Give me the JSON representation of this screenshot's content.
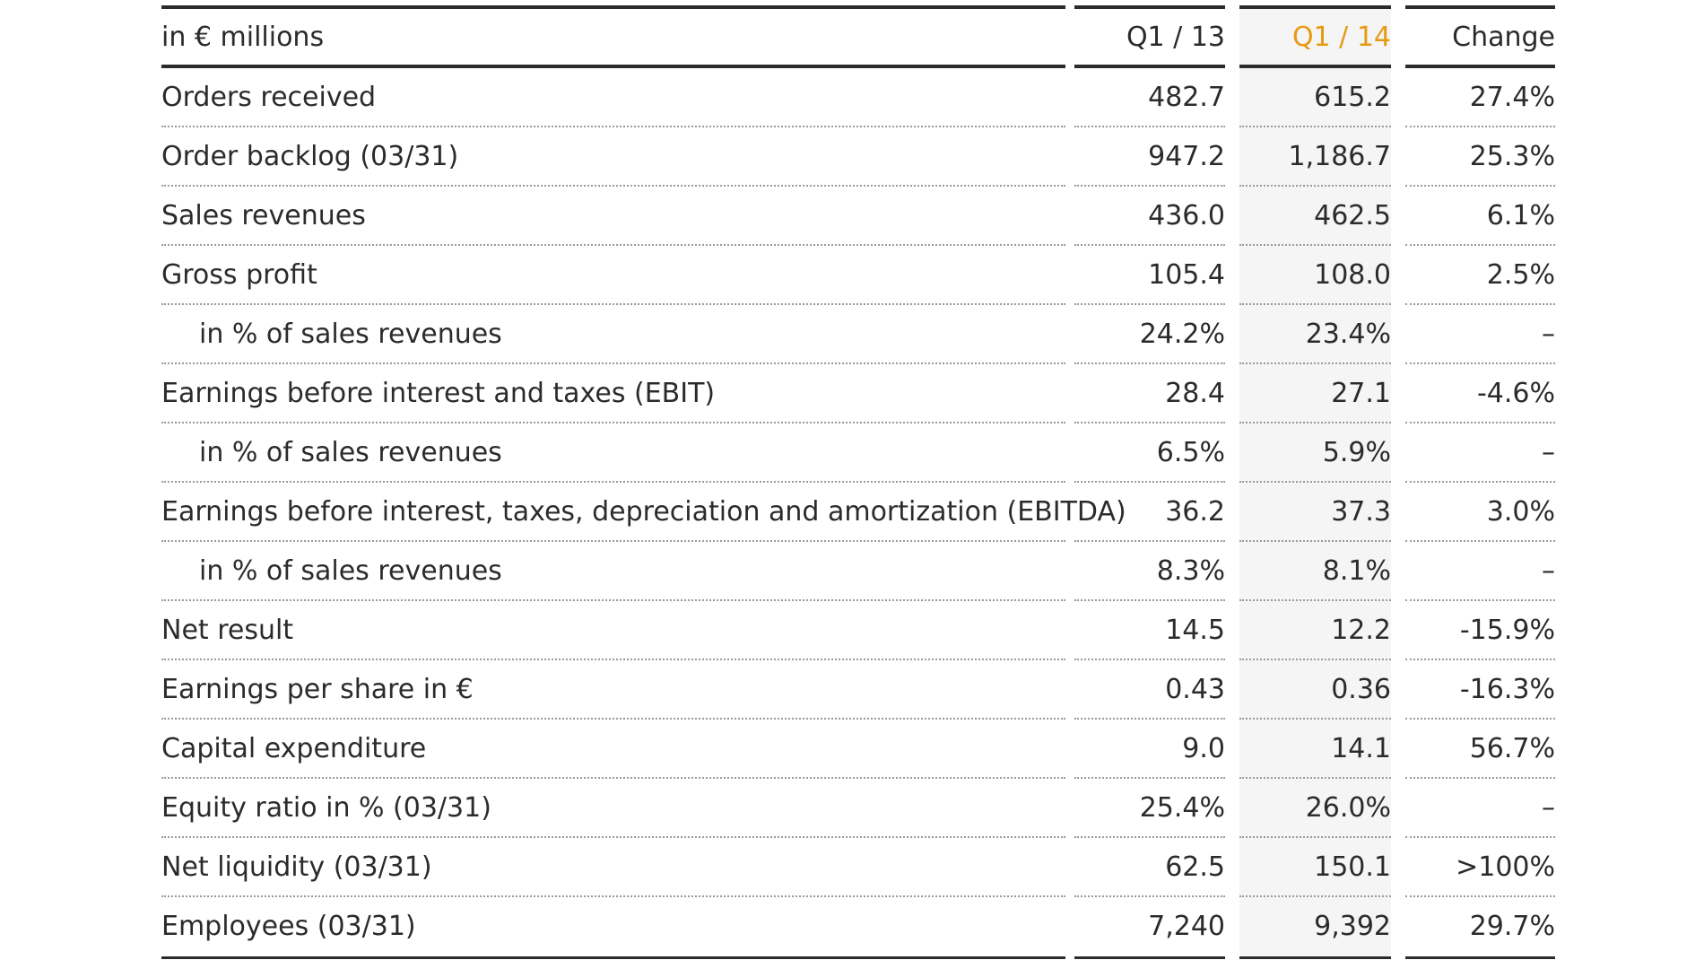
{
  "table": {
    "header": {
      "label": "in € millions",
      "col1": "Q1 / 13",
      "col2": "Q1 / 14",
      "col3": "Change"
    },
    "rows": [
      {
        "label": "Orders received",
        "q1_13": "482.7",
        "q1_14": "615.2",
        "change": "27.4%",
        "indent": false
      },
      {
        "label": "Order backlog (03/31)",
        "q1_13": "947.2",
        "q1_14": "1,186.7",
        "change": "25.3%",
        "indent": false
      },
      {
        "label": "Sales revenues",
        "q1_13": "436.0",
        "q1_14": "462.5",
        "change": "6.1%",
        "indent": false
      },
      {
        "label": "Gross profit",
        "q1_13": "105.4",
        "q1_14": "108.0",
        "change": "2.5%",
        "indent": false
      },
      {
        "label": "in % of sales revenues",
        "q1_13": "24.2%",
        "q1_14": "23.4%",
        "change": "–",
        "indent": true
      },
      {
        "label": "Earnings before interest and taxes (EBIT)",
        "q1_13": "28.4",
        "q1_14": "27.1",
        "change": "-4.6%",
        "indent": false
      },
      {
        "label": "in % of sales revenues",
        "q1_13": "6.5%",
        "q1_14": "5.9%",
        "change": "–",
        "indent": true
      },
      {
        "label": "Earnings before interest, taxes, depreciation and amortization (EBITDA)",
        "q1_13": "36.2",
        "q1_14": "37.3",
        "change": "3.0%",
        "indent": false
      },
      {
        "label": "in % of sales revenues",
        "q1_13": "8.3%",
        "q1_14": "8.1%",
        "change": "–",
        "indent": true
      },
      {
        "label": "Net result",
        "q1_13": "14.5",
        "q1_14": "12.2",
        "change": "-15.9%",
        "indent": false
      },
      {
        "label": "Earnings per share in €",
        "q1_13": "0.43",
        "q1_14": "0.36",
        "change": "-16.3%",
        "indent": false
      },
      {
        "label": "Capital expenditure",
        "q1_13": "9.0",
        "q1_14": "14.1",
        "change": "56.7%",
        "indent": false
      },
      {
        "label": "Equity ratio in % (03/31)",
        "q1_13": "25.4%",
        "q1_14": "26.0%",
        "change": "–",
        "indent": false
      },
      {
        "label": "Net liquidity (03/31)",
        "q1_13": "62.5",
        "q1_14": "150.1",
        "change": ">100%",
        "indent": false
      },
      {
        "label": "Employees (03/31)",
        "q1_13": "7,240",
        "q1_14": "9,392",
        "change": "29.7%",
        "indent": false
      }
    ]
  },
  "colors": {
    "highlight_header": "#e69a12",
    "text": "#2b2b2b",
    "rule": "#2b2b2b",
    "dotted_rule": "#9a9a9a",
    "highlight_column_bg": "#f5f5f5"
  }
}
